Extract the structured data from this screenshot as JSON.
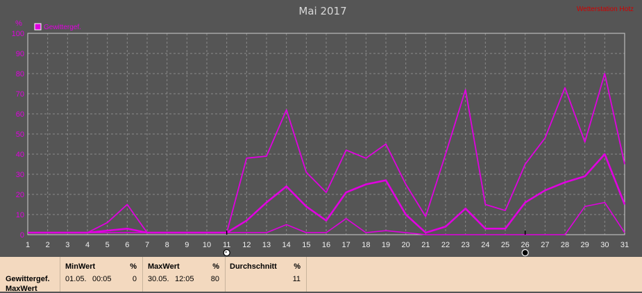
{
  "header": {
    "title": "Mai 2017",
    "brand": "Wetterstation Hotz"
  },
  "chart_data": {
    "type": "line",
    "title": "Mai 2017",
    "ylabel": "%",
    "ylim": [
      0,
      100
    ],
    "y_ticks": [
      0,
      10,
      20,
      30,
      40,
      50,
      60,
      70,
      80,
      90,
      100
    ],
    "x": [
      1,
      2,
      3,
      4,
      5,
      6,
      7,
      8,
      9,
      10,
      11,
      12,
      13,
      14,
      15,
      16,
      17,
      18,
      19,
      20,
      21,
      22,
      23,
      24,
      25,
      26,
      27,
      28,
      29,
      30,
      31
    ],
    "legend": {
      "label": "Gewittergef.",
      "position": "top-left"
    },
    "grid": true,
    "moon_markers": [
      {
        "day": 11,
        "phase": "full-moon"
      },
      {
        "day": 26,
        "phase": "new-moon"
      }
    ],
    "color": "#e000e0",
    "series": [
      {
        "role": "max",
        "values": [
          1,
          1,
          1,
          1,
          6,
          15,
          1,
          1,
          1,
          1,
          1,
          38,
          39,
          62,
          31,
          21,
          42,
          38,
          45,
          25,
          9,
          40,
          72,
          15,
          12,
          35,
          48,
          73,
          46,
          80,
          35
        ]
      },
      {
        "role": "average",
        "values": [
          1,
          1,
          1,
          1,
          2,
          3,
          1,
          1,
          1,
          1,
          1,
          7,
          16,
          24,
          14,
          7,
          21,
          25,
          27,
          10,
          1,
          4,
          13,
          3,
          3,
          16,
          22,
          26,
          29,
          40,
          15
        ]
      },
      {
        "role": "min",
        "values": [
          1,
          1,
          1,
          1,
          1,
          1,
          1,
          1,
          1,
          1,
          1,
          1,
          1,
          5,
          1,
          1,
          8,
          1,
          2,
          1,
          0,
          0,
          0,
          0,
          0,
          0,
          0,
          0,
          14,
          16,
          1
        ]
      }
    ]
  },
  "footer": {
    "series_name": "Gewittergef.",
    "series_name2": "MaxWert",
    "min": {
      "header": "MinWert",
      "unit": "%",
      "date": "01.05.",
      "time": "00:05",
      "value": "0"
    },
    "max": {
      "header": "MaxWert",
      "unit": "%",
      "date": "30.05.",
      "time": "12:05",
      "value": "80"
    },
    "avg": {
      "header": "Durchschnitt",
      "unit": "%",
      "value": "11"
    }
  }
}
